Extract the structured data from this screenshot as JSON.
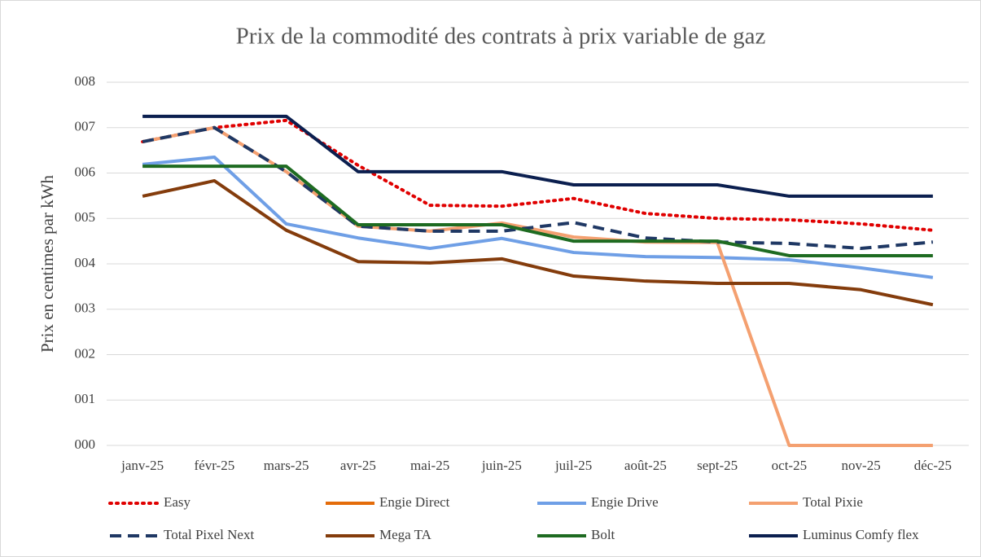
{
  "chart_data": {
    "type": "line",
    "title": "Prix de la commodité des contrats à prix variable de gaz",
    "y_label": "Prix en centimes par kWh",
    "categories": [
      "janv-25",
      "févr-25",
      "mars-25",
      "avr-25",
      "mai-25",
      "juin-25",
      "juil-25",
      "août-25",
      "sept-25",
      "oct-25",
      "nov-25",
      "déc-25"
    ],
    "ylim": [
      0,
      8
    ],
    "yticks": [
      {
        "value": 0,
        "label": "000"
      },
      {
        "value": 1,
        "label": "001"
      },
      {
        "value": 2,
        "label": "002"
      },
      {
        "value": 3,
        "label": "003"
      },
      {
        "value": 4,
        "label": "004"
      },
      {
        "value": 5,
        "label": "005"
      },
      {
        "value": 6,
        "label": "006"
      },
      {
        "value": 7,
        "label": "007"
      },
      {
        "value": 8,
        "label": "008"
      }
    ],
    "grid": true,
    "legend": "bottom",
    "series": [
      {
        "name": "Easy",
        "color": "#e00000",
        "dash": "dot",
        "values": [
          6.69,
          7.0,
          7.16,
          6.17,
          5.29,
          5.27,
          5.44,
          5.11,
          5.0,
          4.97,
          4.88,
          4.74
        ]
      },
      {
        "name": "Engie Direct",
        "color": "#e46c0a",
        "values": [
          null,
          null,
          null,
          null,
          null,
          null,
          null,
          null,
          null,
          null,
          null,
          null
        ]
      },
      {
        "name": "Engie Drive",
        "color": "#6f9fe6",
        "values": [
          6.19,
          6.35,
          4.88,
          4.57,
          4.34,
          4.56,
          4.25,
          4.16,
          4.14,
          4.09,
          3.91,
          3.7
        ]
      },
      {
        "name": "Total Pixie",
        "color": "#f4a070",
        "values": [
          6.69,
          7.0,
          6.03,
          4.83,
          4.72,
          4.9,
          4.59,
          4.48,
          4.47,
          0,
          0,
          0
        ]
      },
      {
        "name": "Total Pixel Next",
        "color": "#1f3864",
        "dash": "dash",
        "values": [
          6.69,
          7.0,
          6.03,
          4.83,
          4.72,
          4.72,
          4.91,
          4.57,
          4.48,
          4.45,
          4.34,
          4.48
        ]
      },
      {
        "name": "Mega TA",
        "color": "#843c0c",
        "values": [
          5.49,
          5.83,
          4.74,
          4.05,
          4.02,
          4.11,
          3.73,
          3.62,
          3.57,
          3.57,
          3.43,
          3.1
        ]
      },
      {
        "name": "Bolt",
        "color": "#1e6b21",
        "values": [
          6.15,
          6.15,
          6.15,
          4.86,
          4.86,
          4.86,
          4.5,
          4.5,
          4.5,
          4.18,
          4.18,
          4.18
        ]
      },
      {
        "name": "Luminus Comfy flex",
        "color": "#0b1f4f",
        "values": [
          7.25,
          7.25,
          7.25,
          6.03,
          6.03,
          6.03,
          5.74,
          5.74,
          5.74,
          5.49,
          5.49,
          5.49
        ]
      }
    ]
  }
}
